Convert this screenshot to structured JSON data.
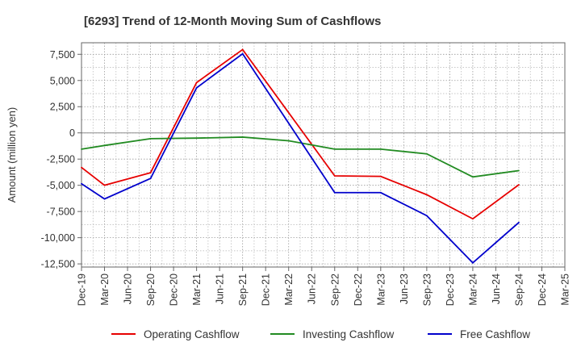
{
  "chart_data": {
    "type": "line",
    "title": "[6293]  Trend of 12-Month Moving Sum of Cashflows",
    "xlabel": "",
    "ylabel": "Amount (million yen)",
    "ylim": [
      -12800,
      8600
    ],
    "yticks": [
      7500,
      5000,
      2500,
      0,
      -2500,
      -5000,
      -7500,
      -10000,
      -12500
    ],
    "ytick_labels": [
      "7,500",
      "5,000",
      "2,500",
      "0",
      "-2,500",
      "-5,000",
      "-7,500",
      "-10,000",
      "-12,500"
    ],
    "categories": [
      "Dec-19",
      "Mar-20",
      "Jun-20",
      "Sep-20",
      "Dec-20",
      "Mar-21",
      "Jun-21",
      "Sep-21",
      "Dec-21",
      "Mar-22",
      "Jun-22",
      "Sep-22",
      "Dec-22",
      "Mar-23",
      "Jun-23",
      "Sep-23",
      "Dec-23",
      "Mar-24",
      "Jun-24",
      "Sep-24",
      "Dec-24",
      "Mar-25"
    ],
    "grid": true,
    "legend_position": "bottom",
    "series": [
      {
        "name": "Operating Cashflow",
        "color": "#e60000",
        "values": [
          -3300,
          -5000,
          null,
          -3800,
          null,
          4800,
          null,
          7950,
          null,
          null,
          null,
          -4100,
          null,
          -4150,
          null,
          -5900,
          null,
          -8200,
          null,
          -4950,
          null,
          null
        ]
      },
      {
        "name": "Investing Cashflow",
        "color": "#228b22",
        "values": [
          -1550,
          -1200,
          null,
          -550,
          null,
          -500,
          null,
          -400,
          null,
          -750,
          null,
          -1550,
          null,
          -1550,
          null,
          -2000,
          null,
          -4200,
          null,
          -3600,
          null,
          null
        ]
      },
      {
        "name": "Free Cashflow",
        "color": "#0000cc",
        "values": [
          -4850,
          -6300,
          null,
          -4350,
          null,
          4300,
          null,
          7550,
          null,
          null,
          null,
          -5700,
          null,
          -5700,
          null,
          -7900,
          null,
          -12400,
          null,
          -8550,
          null,
          null
        ]
      }
    ]
  }
}
